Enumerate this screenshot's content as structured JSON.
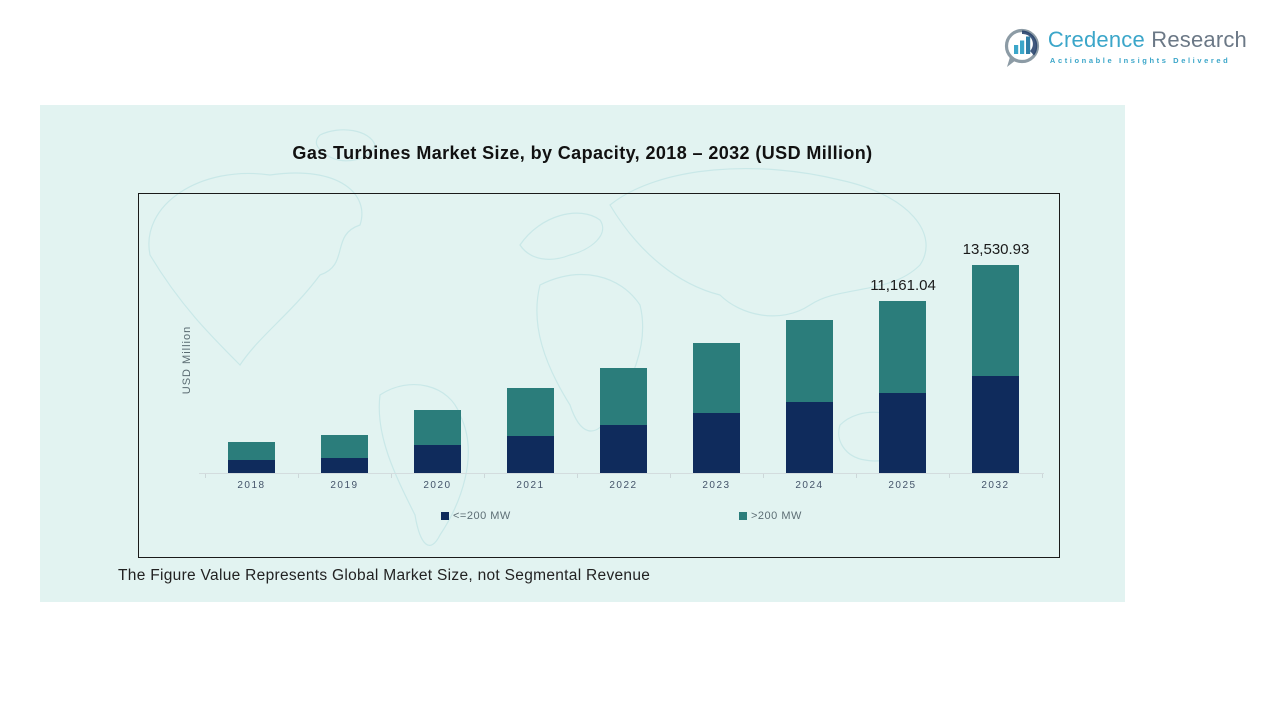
{
  "logo": {
    "brand_primary": "Credence",
    "brand_secondary": "Research",
    "tagline": "Actionable Insights Delivered",
    "colors": {
      "primary": "#3BA6C9",
      "secondary": "#6B7886"
    }
  },
  "panel": {
    "title": "Gas Turbines Market Size, by Capacity, 2018 – 2032 (USD Million)",
    "footnote": "The Figure Value Represents Global Market Size, not Segmental Revenue",
    "background": "#E2F3F1"
  },
  "chart_data": {
    "type": "bar",
    "stacked": true,
    "title": "Gas Turbines Market Size, by Capacity, 2018 – 2032 (USD Million)",
    "xlabel": "",
    "ylabel": "USD Million",
    "grid": false,
    "legend_position": "bottom",
    "categories": [
      "2018",
      "2019",
      "2020",
      "2021",
      "2022",
      "2023",
      "2024",
      "2025",
      "2032"
    ],
    "series": [
      {
        "name": "<=200 MW",
        "color": "#0F2B5C",
        "values": [
          840,
          960,
          1795,
          2435,
          3140,
          3905,
          4610,
          5204,
          6332
        ]
      },
      {
        "name": ">200 MW",
        "color": "#2B7D7B",
        "values": [
          1150,
          1480,
          2305,
          3135,
          3710,
          4545,
          5310,
          5957,
          7199
        ]
      }
    ],
    "totals": [
      1990,
      2440,
      4100,
      5570,
      6850,
      8450,
      9920,
      11161.04,
      13530.93
    ],
    "data_labels": [
      {
        "category": "2025",
        "text": "11,161.04"
      },
      {
        "category": "2032",
        "text": "13,530.93"
      }
    ]
  }
}
